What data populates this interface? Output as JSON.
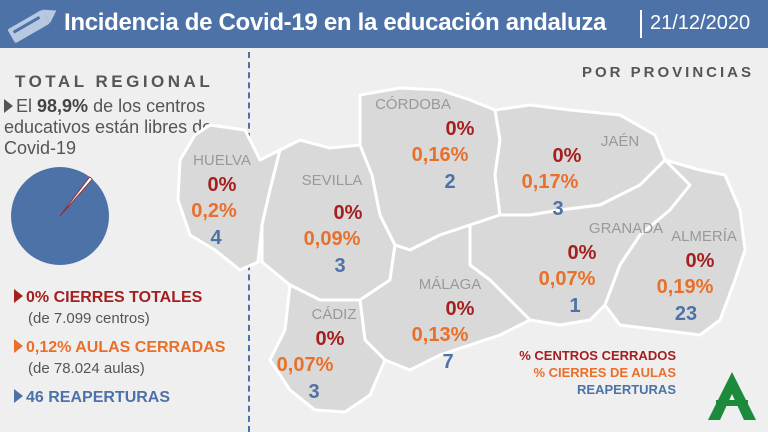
{
  "header": {
    "title": "Incidencia de Covid-19 en la educación andaluza",
    "date": "21/12/2020"
  },
  "colors": {
    "header": "#4d72a8",
    "closed_centers": "#a3201f",
    "closed_classrooms": "#e8702a",
    "reopenings": "#4d72a8",
    "map": "#d9d9d9"
  },
  "regional": {
    "title": "TOTAL REGIONAL",
    "intro_pre": "El ",
    "intro_pct": "98,9%",
    "intro_post": " de los centros educativos están libres de Covid-19",
    "pie_free_pct": 98.9,
    "stats": [
      {
        "label": "0% CIERRES TOTALES",
        "sub": "(de 7.099 centros)"
      },
      {
        "label": "0,12% AULAS CERRADAS",
        "sub": "(de 78.024 aulas)"
      },
      {
        "label": "46 REAPERTURAS"
      }
    ]
  },
  "provinces_title": "POR PROVINCIAS",
  "provinces": [
    {
      "name": "HUELVA",
      "closed": "0%",
      "classrooms": "0,2%",
      "reopen": "4"
    },
    {
      "name": "SEVILLA",
      "closed": "0%",
      "classrooms": "0,09%",
      "reopen": "3"
    },
    {
      "name": "CÓRDOBA",
      "closed": "0%",
      "classrooms": "0,16%",
      "reopen": "2"
    },
    {
      "name": "JAÉN",
      "closed": "0%",
      "classrooms": "0,17%",
      "reopen": "3"
    },
    {
      "name": "GRANADA",
      "closed": "0%",
      "classrooms": "0,07%",
      "reopen": "1"
    },
    {
      "name": "ALMERÍA",
      "closed": "0%",
      "classrooms": "0,19%",
      "reopen": "23"
    },
    {
      "name": "MÁLAGA",
      "closed": "0%",
      "classrooms": "0,13%",
      "reopen": "7"
    },
    {
      "name": "CÁDIZ",
      "closed": "0%",
      "classrooms": "0,07%",
      "reopen": "3"
    }
  ],
  "legend": [
    "% CENTROS CERRADOS",
    "% CIERRES DE AULAS",
    "REAPERTURAS"
  ]
}
